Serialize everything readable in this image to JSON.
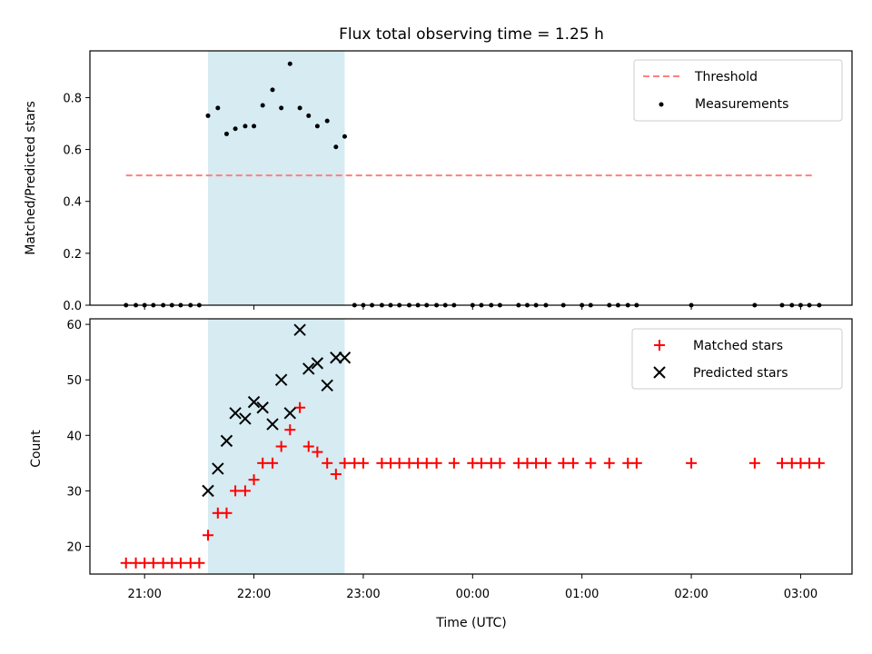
{
  "chart_data": {
    "type": "scatter",
    "title": "Flux total observing time = 1.25 h",
    "xlabel": "Time (UTC)",
    "x_ticks": [
      "21:00",
      "22:00",
      "23:00",
      "00:00",
      "01:00",
      "02:00",
      "03:00"
    ],
    "x_tick_hours": [
      21,
      22,
      23,
      24,
      25,
      26,
      27
    ],
    "xlim_hours": [
      20.5,
      27.47
    ],
    "highlight_span_hours": [
      21.58,
      22.83
    ],
    "highlight_color": "#add8e6",
    "panels": [
      {
        "ylabel": "Matched/Predicted stars",
        "ylim": [
          0,
          0.98
        ],
        "y_ticks": [
          0.0,
          0.2,
          0.4,
          0.6,
          0.8
        ],
        "y_tick_labels": [
          "0.0",
          "0.2",
          "0.4",
          "0.6",
          "0.8"
        ],
        "legend": [
          "Threshold",
          "Measurements"
        ],
        "series": [
          {
            "name": "Threshold",
            "type": "line",
            "style": "dashed",
            "color": "#ff7f7f",
            "x": [
              20.83,
              27.13
            ],
            "y": [
              0.5,
              0.5
            ]
          },
          {
            "name": "Measurements",
            "type": "scatter",
            "marker": "dot",
            "color": "#000000",
            "x": [
              20.83,
              20.92,
              21.0,
              21.08,
              21.17,
              21.25,
              21.33,
              21.42,
              21.5,
              21.58,
              21.67,
              21.75,
              21.83,
              21.92,
              22.0,
              22.08,
              22.17,
              22.25,
              22.33,
              22.42,
              22.5,
              22.58,
              22.67,
              22.75,
              22.83,
              22.92,
              23.0,
              23.08,
              23.17,
              23.25,
              23.33,
              23.42,
              23.5,
              23.58,
              23.67,
              23.75,
              23.83,
              24.0,
              24.08,
              24.17,
              24.25,
              24.42,
              24.5,
              24.58,
              24.67,
              24.83,
              25.0,
              25.08,
              25.25,
              25.33,
              25.42,
              25.5,
              26.0,
              26.58,
              26.83,
              26.92,
              27.0,
              27.08,
              27.17
            ],
            "y": [
              0,
              0,
              0,
              0,
              0,
              0,
              0,
              0,
              0,
              0.73,
              0.76,
              0.66,
              0.68,
              0.69,
              0.69,
              0.77,
              0.83,
              0.76,
              0.93,
              0.76,
              0.73,
              0.69,
              0.71,
              0.61,
              0.65,
              0,
              0,
              0,
              0,
              0,
              0,
              0,
              0,
              0,
              0,
              0,
              0,
              0,
              0,
              0,
              0,
              0,
              0,
              0,
              0,
              0,
              0,
              0,
              0,
              0,
              0,
              0,
              0,
              0,
              0,
              0,
              0,
              0,
              0
            ]
          }
        ]
      },
      {
        "ylabel": "Count",
        "ylim": [
          15,
          61
        ],
        "y_ticks": [
          20,
          30,
          40,
          50,
          60
        ],
        "y_tick_labels": [
          "20",
          "30",
          "40",
          "50",
          "60"
        ],
        "legend": [
          "Matched stars",
          "Predicted stars"
        ],
        "series": [
          {
            "name": "Matched stars",
            "type": "scatter",
            "marker": "plus",
            "color": "#ff0000",
            "x": [
              20.83,
              20.92,
              21.0,
              21.08,
              21.17,
              21.25,
              21.33,
              21.42,
              21.5,
              21.58,
              21.67,
              21.75,
              21.83,
              21.92,
              22.0,
              22.08,
              22.17,
              22.25,
              22.33,
              22.42,
              22.5,
              22.58,
              22.67,
              22.75,
              22.83,
              22.92,
              23.0,
              23.17,
              23.25,
              23.33,
              23.42,
              23.5,
              23.58,
              23.67,
              23.83,
              24.0,
              24.08,
              24.17,
              24.25,
              24.42,
              24.5,
              24.58,
              24.67,
              24.83,
              24.92,
              25.08,
              25.25,
              25.42,
              25.5,
              26.0,
              26.58,
              26.83,
              26.92,
              27.0,
              27.08,
              27.17
            ],
            "y": [
              17,
              17,
              17,
              17,
              17,
              17,
              17,
              17,
              17,
              22,
              26,
              26,
              30,
              30,
              32,
              35,
              35,
              38,
              41,
              45,
              38,
              37,
              35,
              33,
              35,
              35,
              35,
              35,
              35,
              35,
              35,
              35,
              35,
              35,
              35,
              35,
              35,
              35,
              35,
              35,
              35,
              35,
              35,
              35,
              35,
              35,
              35,
              35,
              35,
              35,
              35,
              35,
              35,
              35,
              35,
              35
            ]
          },
          {
            "name": "Predicted stars",
            "type": "scatter",
            "marker": "x",
            "color": "#000000",
            "x": [
              21.58,
              21.67,
              21.75,
              21.83,
              21.92,
              22.0,
              22.08,
              22.17,
              22.25,
              22.33,
              22.42,
              22.5,
              22.58,
              22.67,
              22.75,
              22.83
            ],
            "y": [
              30,
              34,
              39,
              44,
              43,
              46,
              45,
              42,
              50,
              44,
              59,
              52,
              53,
              49,
              54,
              54
            ]
          }
        ]
      }
    ]
  }
}
